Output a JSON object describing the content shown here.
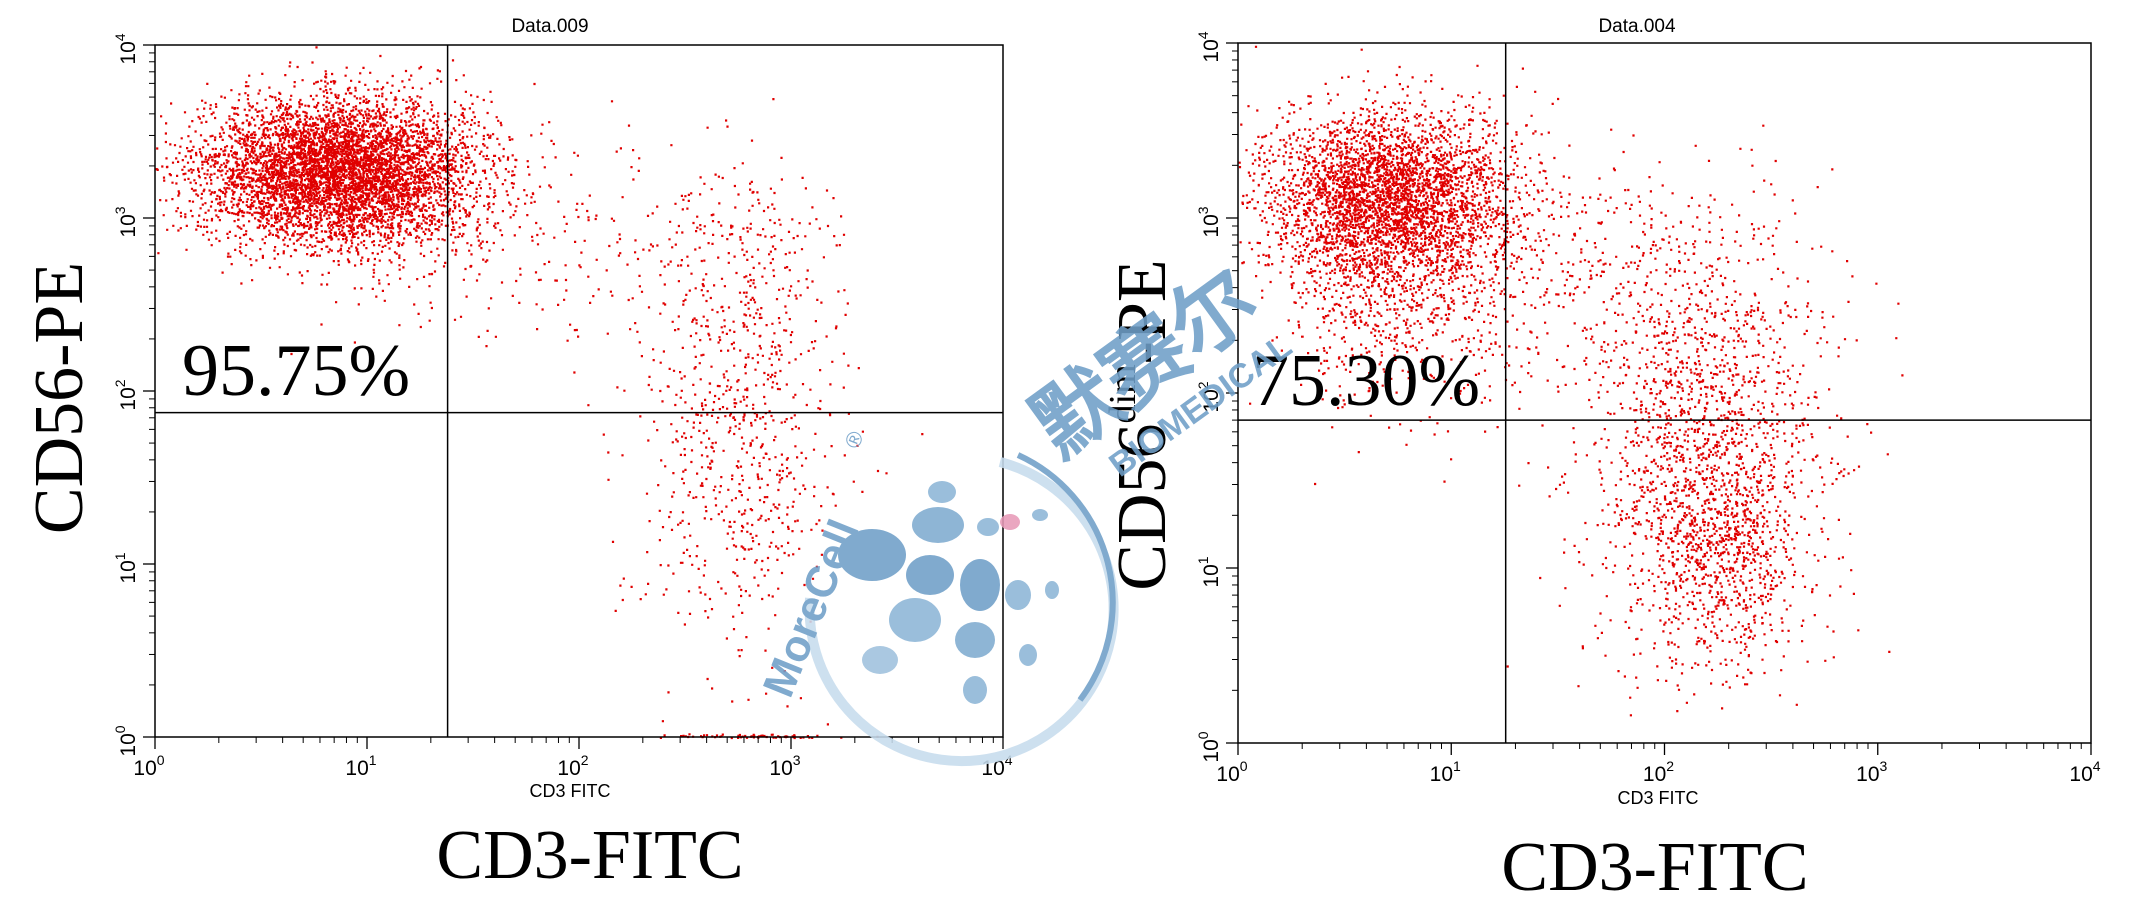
{
  "chart_data": [
    {
      "type": "scatter",
      "title": "Data.009",
      "xlabel": "CD3-FITC",
      "xlabel_inner": "CD3 FITC",
      "ylabel": "CD56-PE",
      "xscale": "log",
      "yscale": "log",
      "xlim": [
        1,
        10000
      ],
      "ylim": [
        1,
        10000
      ],
      "x_ticks": [
        1,
        10,
        100,
        1000,
        10000
      ],
      "y_ticks": [
        1,
        10,
        100,
        1000,
        10000
      ],
      "x_tick_labels": [
        "10",
        "10",
        "10",
        "10",
        "10"
      ],
      "x_tick_exponents": [
        "0",
        "1",
        "2",
        "3",
        "4"
      ],
      "y_tick_labels": [
        "10",
        "10",
        "10",
        "10",
        "10"
      ],
      "y_tick_exponents": [
        "0",
        "1",
        "2",
        "3",
        "4"
      ],
      "gate": {
        "x": 24,
        "y": 75
      },
      "annotation": "95.75%",
      "annotation_quadrant": "upper-left",
      "point_color": "#e00000",
      "populations": [
        {
          "cx": 7,
          "cy": 1900,
          "sx": 0.32,
          "sy": 0.2,
          "n": 5200
        },
        {
          "cx": 11,
          "cy": 1500,
          "sx": 0.32,
          "sy": 0.3,
          "n": 700
        },
        {
          "cx": 550,
          "cy": 55,
          "sx": 0.24,
          "sy": 0.6,
          "n": 700
        },
        {
          "cx": 600,
          "cy": 700,
          "sx": 0.22,
          "sy": 0.25,
          "n": 160
        },
        {
          "cx": 80,
          "cy": 800,
          "sx": 0.4,
          "sy": 0.3,
          "n": 140
        },
        {
          "cx": 600,
          "cy": 1,
          "sx": 0.2,
          "sy": 0.01,
          "n": 120
        }
      ]
    },
    {
      "type": "scatter",
      "title": "Data.004",
      "xlabel": "CD3-FITC",
      "xlabel_inner": "CD3 FITC",
      "ylabel": "CD56",
      "ylabel_sup": "dim",
      "ylabel_suffix": "-PE",
      "xscale": "log",
      "yscale": "log",
      "xlim": [
        1,
        10000
      ],
      "ylim": [
        1,
        10000
      ],
      "x_ticks": [
        1,
        10,
        100,
        1000,
        10000
      ],
      "y_ticks": [
        1,
        10,
        100,
        1000,
        10000
      ],
      "x_tick_labels": [
        "10",
        "10",
        "10",
        "10",
        "10"
      ],
      "x_tick_exponents": [
        "0",
        "1",
        "2",
        "3",
        "4"
      ],
      "y_tick_labels": [
        "10",
        "10",
        "10",
        "10",
        "10"
      ],
      "y_tick_exponents": [
        "0",
        "1",
        "2",
        "3",
        "4"
      ],
      "gate": {
        "x": 18,
        "y": 70
      },
      "annotation": "75.30%",
      "annotation_quadrant": "upper-left",
      "point_color": "#e00000",
      "populations": [
        {
          "cx": 5,
          "cy": 1300,
          "sx": 0.3,
          "sy": 0.25,
          "n": 3600
        },
        {
          "cx": 6,
          "cy": 400,
          "sx": 0.3,
          "sy": 0.35,
          "n": 800
        },
        {
          "cx": 160,
          "cy": 40,
          "sx": 0.28,
          "sy": 0.55,
          "n": 1500
        },
        {
          "cx": 170,
          "cy": 12,
          "sx": 0.18,
          "sy": 0.3,
          "n": 500
        },
        {
          "cx": 80,
          "cy": 400,
          "sx": 0.35,
          "sy": 0.4,
          "n": 400
        }
      ]
    }
  ],
  "watermark": {
    "brand": "MoreCell",
    "registered": "®",
    "cn_text": "默赛尔",
    "en_text": "BIOMEDICAL",
    "color": "#6f9fc8",
    "accent_color": "#e79ab8"
  }
}
